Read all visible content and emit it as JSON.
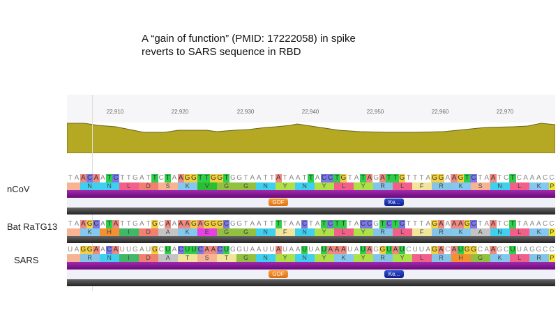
{
  "title_lines": [
    "A “gain of function” (PMID: 17222058) in spike",
    "reverts to SARS sequence in RBD"
  ],
  "ruler_ticks": [
    "22,910",
    "22,920",
    "22,930",
    "22,940",
    "22,950",
    "22,960",
    "22,970"
  ],
  "tracks": [
    {
      "label": "nCoV",
      "seq": "TAACAATCTTGATTCTAAGGTTGGTGGTAATTATAATTACCTGTATAGATTGTTTAGGAAGTCTAATCTCAAACC",
      "mask": "001110110000010101111111100000001000010111100110111100001101111001001",
      "aa": [
        "N",
        "N",
        "L",
        "D",
        "S",
        "K",
        "V",
        "G",
        "G",
        "N",
        "Y",
        "N",
        "Y",
        "L",
        "Y",
        "R",
        "L",
        "F",
        "R",
        "K",
        "S",
        "N",
        "L",
        "K",
        "P"
      ],
      "features": [
        "GOF",
        "Ke..."
      ]
    },
    {
      "label": "Bat RaTG13",
      "seq": "TAAGCATATTGATGCAAAAGAGGGCGGTAATTTTAACTATCTTTACCGTCTCTTTAGAAAAGCTAATCTTAAACC",
      "mask": "001110110000010101111111100000001000100111100110111100001101111001001",
      "aa": [
        "K",
        "H",
        "I",
        "D",
        "A",
        "K",
        "E",
        "G",
        "G",
        "N",
        "F",
        "N",
        "Y",
        "L",
        "Y",
        "R",
        "L",
        "F",
        "R",
        "K",
        "A",
        "N",
        "L",
        "K",
        "P"
      ],
      "features": []
    },
    {
      "label": "SARS",
      "seq": "UAGGAACAUUGAUGCUACUUCAACUGGUAAUUAUAAUUAUAAAUAUAGGUAUCUUAGACAUGGCAAGCUUAGGCC",
      "mask": "001110110000010101111111100000001000100111100110111100001101111001001",
      "aa": [
        "R",
        "N",
        "I",
        "D",
        "A",
        "T",
        "S",
        "T",
        "G",
        "N",
        "Y",
        "N",
        "Y",
        "K",
        "Y",
        "R",
        "Y",
        "L",
        "R",
        "H",
        "G",
        "K",
        "L",
        "R",
        "P"
      ],
      "features": [
        "GOF",
        "Ke..."
      ]
    }
  ],
  "base_colors": {
    "A": "#f08a80",
    "C": "#7a78e8",
    "G": "#f2d040",
    "T": "#2ed04a",
    "U": "#2ed04a"
  },
  "aa_colors": {
    "N": "#3ed0ee",
    "L": "#f2608a",
    "D": "#f28070",
    "S": "#f6b494",
    "K": "#84c8f0",
    "V": "#28c030",
    "G": "#92c040",
    "Y": "#aee048",
    "F": "#f2e49a",
    "R": "#84c4e6",
    "P": "#f4e420",
    "H": "#f49030",
    "I": "#40b868",
    "A": "#c4c4c4",
    "E": "#e640e6",
    "T": "#f2e49a"
  }
}
